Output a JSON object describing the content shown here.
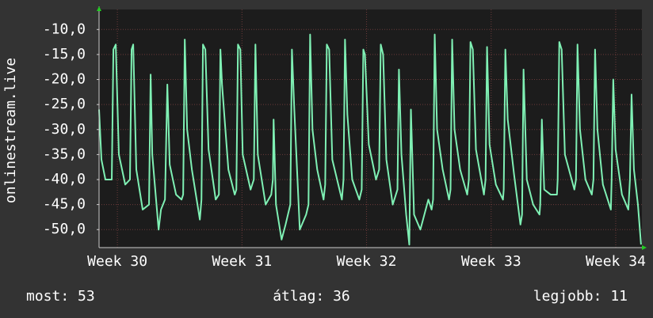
{
  "chart_data": {
    "type": "line",
    "y_label": "onlinestream.live",
    "color": "#7ff0b4",
    "grid": true,
    "xlim": [
      29.853,
      34.21
    ],
    "ylim": [
      -53.6,
      -6
    ],
    "xticks": [
      {
        "value": 30,
        "label": "Week 30"
      },
      {
        "value": 31,
        "label": "Week 31"
      },
      {
        "value": 32,
        "label": "Week 32"
      },
      {
        "value": 33,
        "label": "Week 33"
      },
      {
        "value": 34,
        "label": "Week 34"
      }
    ],
    "yticks": [
      {
        "value": -10,
        "label": "-10,0"
      },
      {
        "value": -15,
        "label": "-15,0"
      },
      {
        "value": -20,
        "label": "-20,0"
      },
      {
        "value": -25,
        "label": "-25,0"
      },
      {
        "value": -30,
        "label": "-30,0"
      },
      {
        "value": -35,
        "label": "-35,0"
      },
      {
        "value": -40,
        "label": "-40,0"
      },
      {
        "value": -45,
        "label": "-45,0"
      },
      {
        "value": -50,
        "label": "-50,0"
      }
    ],
    "x": [
      29.853,
      29.872,
      29.904,
      29.955,
      29.968,
      29.987,
      30.012,
      30.063,
      30.101,
      30.114,
      30.127,
      30.152,
      30.203,
      30.254,
      30.267,
      30.28,
      30.331,
      30.35,
      30.382,
      30.401,
      30.42,
      30.471,
      30.515,
      30.528,
      30.541,
      30.56,
      30.598,
      30.662,
      30.675,
      30.687,
      30.706,
      30.732,
      30.789,
      30.815,
      30.827,
      30.84,
      30.891,
      30.942,
      30.955,
      30.968,
      30.987,
      31.006,
      31.069,
      31.095,
      31.108,
      31.127,
      31.19,
      31.235,
      31.248,
      31.254,
      31.273,
      31.318,
      31.35,
      31.388,
      31.401,
      31.42,
      31.464,
      31.515,
      31.534,
      31.547,
      31.566,
      31.604,
      31.655,
      31.668,
      31.681,
      31.7,
      31.725,
      31.802,
      31.815,
      31.827,
      31.846,
      31.885,
      31.942,
      31.961,
      31.974,
      31.987,
      32.018,
      32.076,
      32.101,
      32.114,
      32.133,
      32.159,
      32.21,
      32.248,
      32.26,
      32.28,
      32.318,
      32.343,
      32.356,
      32.381,
      32.432,
      32.496,
      32.522,
      32.534,
      32.547,
      32.566,
      32.611,
      32.662,
      32.674,
      32.687,
      32.706,
      32.751,
      32.808,
      32.821,
      32.834,
      32.853,
      32.878,
      32.942,
      32.955,
      32.967,
      32.987,
      33.038,
      33.095,
      33.101,
      33.114,
      33.133,
      33.184,
      33.235,
      33.248,
      33.26,
      33.286,
      33.337,
      33.388,
      33.394,
      33.407,
      33.426,
      33.477,
      33.528,
      33.534,
      33.547,
      33.566,
      33.592,
      33.668,
      33.681,
      33.693,
      33.713,
      33.757,
      33.808,
      33.821,
      33.834,
      33.853,
      33.897,
      33.961,
      33.967,
      33.98,
      33.999,
      34.05,
      34.101,
      34.114,
      34.127,
      34.146,
      34.178,
      34.203
    ],
    "values": [
      -26,
      -36,
      -40,
      -40,
      -14,
      -13,
      -35,
      -41,
      -40,
      -14,
      -13,
      -38,
      -46,
      -45,
      -19,
      -35,
      -50,
      -46,
      -44,
      -21,
      -37,
      -43,
      -44,
      -43,
      -12,
      -30,
      -38,
      -48,
      -44,
      -13,
      -14,
      -34,
      -44,
      -43,
      -14,
      -21,
      -38,
      -43,
      -42,
      -13,
      -14,
      -35,
      -42,
      -40,
      -13,
      -35,
      -45,
      -43,
      -40,
      -28,
      -45,
      -52,
      -49,
      -45,
      -14,
      -26,
      -50,
      -47,
      -45,
      -11,
      -30,
      -38,
      -44,
      -41,
      -13,
      -14,
      -36,
      -44,
      -40,
      -12,
      -27,
      -40,
      -44,
      -42,
      -14,
      -15,
      -33,
      -40,
      -38,
      -13,
      -15,
      -36,
      -45,
      -42,
      -18,
      -35,
      -47,
      -53,
      -26,
      -47,
      -50,
      -44,
      -46,
      -44,
      -11,
      -30,
      -38,
      -44,
      -42,
      -12,
      -30,
      -38,
      -43,
      -40,
      -12.5,
      -14,
      -34,
      -43,
      -40,
      -13.5,
      -33,
      -41,
      -44,
      -42,
      -14,
      -28,
      -39,
      -49,
      -47,
      -18,
      -40,
      -45,
      -47,
      -45,
      -28,
      -42,
      -43,
      -43,
      -40,
      -12.5,
      -14,
      -35,
      -42,
      -40,
      -13,
      -30,
      -40,
      -43,
      -40,
      -14,
      -30,
      -41,
      -46,
      -40,
      -20,
      -34,
      -43,
      -46,
      -40,
      -23,
      -38,
      -45,
      -53
    ],
    "summary": [
      "most: 53",
      "átlag: 36",
      "legjobb: 11"
    ]
  }
}
